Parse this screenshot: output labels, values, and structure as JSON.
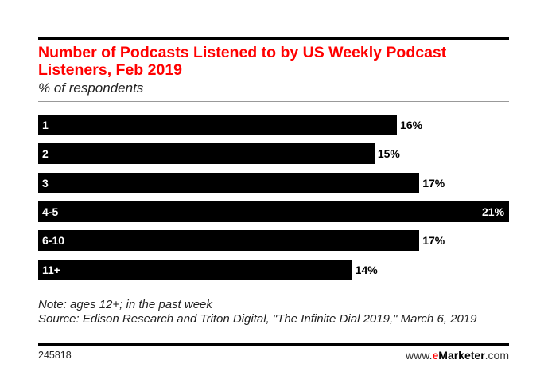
{
  "chart_data": {
    "type": "bar",
    "orientation": "horizontal",
    "title": "Number of Podcasts Listened to by US Weekly Podcast Listeners, Feb 2019",
    "subtitle": "% of respondents",
    "categories": [
      "1",
      "2",
      "3",
      "4-5",
      "6-10",
      "11+"
    ],
    "values": [
      16,
      15,
      17,
      21,
      17,
      14
    ],
    "value_labels": [
      "16%",
      "15%",
      "17%",
      "21%",
      "17%",
      "14%"
    ],
    "xlim": [
      0,
      21
    ],
    "grid": false,
    "bar_color": "#000000",
    "title_color": "#ff0000"
  },
  "notes": {
    "note": "Note: ages 12+; in the past week",
    "source": "Source: Edison Research and Triton Digital, \"The Infinite Dial 2019,\" March 6, 2019"
  },
  "footer": {
    "id": "245818",
    "brand_prefix": "www.",
    "brand_mid": "e",
    "brand_name": "Marketer",
    "brand_suffix": ".com"
  }
}
